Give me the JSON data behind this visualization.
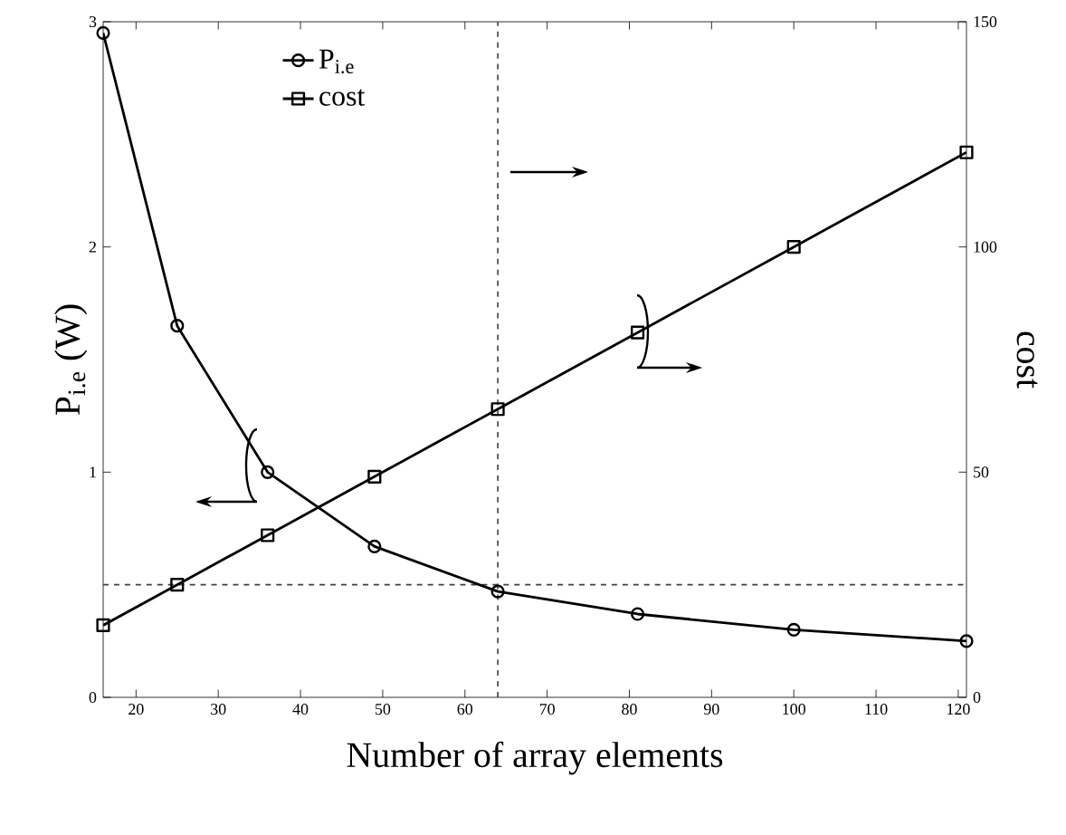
{
  "chart_data": {
    "type": "line",
    "xlabel": "Number of array elements",
    "ylabel": "P$_{i.e}$ (W)",
    "y2label": "cost",
    "x": [
      16,
      25,
      36,
      49,
      64,
      81,
      100,
      121
    ],
    "series": [
      {
        "name": "P$_{i.e}$",
        "color": "#000000",
        "marker": "circle",
        "values": [
          2.95,
          1.65,
          1.0,
          0.67,
          0.47,
          0.37,
          0.3,
          0.25
        ]
      },
      {
        "name": "cost",
        "color": "#000000",
        "marker": "square",
        "axis": "y2",
        "values": [
          16,
          25,
          36,
          49,
          64,
          81,
          100,
          121
        ]
      }
    ],
    "xlim": [
      16,
      121
    ],
    "xticks": [
      20,
      30,
      40,
      50,
      60,
      70,
      80,
      90,
      100,
      110,
      120
    ],
    "ylim": [
      0,
      3
    ],
    "yticks": [
      0,
      1,
      2,
      3
    ],
    "y2lim": [
      0,
      150
    ],
    "y2ticks": [
      0,
      50,
      100,
      150
    ],
    "ref_lines": [
      {
        "axis": "x",
        "value": 64,
        "color": "#404040",
        "line_style": "dashed"
      },
      {
        "axis": "y",
        "value": 0.5,
        "color": "#404040",
        "line_style": "dashed"
      }
    ],
    "grid": false,
    "legend": "top left",
    "line_style": "solid"
  }
}
